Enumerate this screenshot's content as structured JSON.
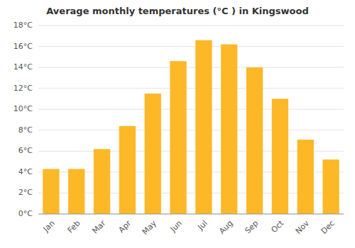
{
  "chart_data": {
    "type": "bar",
    "title": "Average monthly temperatures (°C ) in Kingswood",
    "categories": [
      "Jan",
      "Feb",
      "Mar",
      "Apr",
      "May",
      "Jun",
      "Jul",
      "Aug",
      "Sep",
      "Oct",
      "Nov",
      "Dec"
    ],
    "values": [
      4.3,
      4.3,
      6.2,
      8.4,
      11.5,
      14.6,
      16.6,
      16.2,
      14.0,
      11.0,
      7.1,
      5.2
    ],
    "color": "#FDB827",
    "ylim": [
      0,
      18
    ],
    "yticks": [
      {
        "value": 0,
        "label": "0°C"
      },
      {
        "value": 2,
        "label": "2°C"
      },
      {
        "value": 4,
        "label": "4°C"
      },
      {
        "value": 6,
        "label": "6°C"
      },
      {
        "value": 8,
        "label": "8°C"
      },
      {
        "value": 10,
        "label": "10°C"
      },
      {
        "value": 12,
        "label": "12°C"
      },
      {
        "value": 14,
        "label": "14°C"
      },
      {
        "value": 16,
        "label": "16°C"
      },
      {
        "value": 18,
        "label": "18°C"
      }
    ],
    "grid": true
  }
}
